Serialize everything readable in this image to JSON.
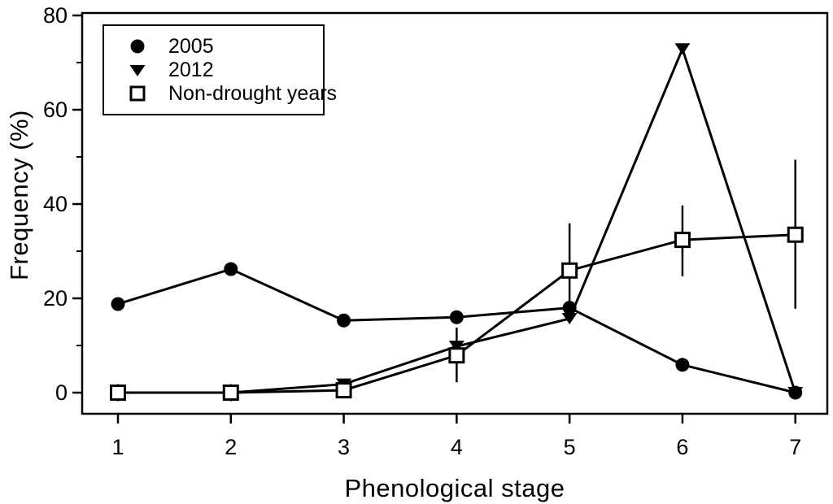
{
  "figure": {
    "background_color": "#ffffff",
    "foreground_color": "#000000"
  },
  "chart_data": {
    "type": "line",
    "title": "",
    "xlabel": "Phenological stage",
    "ylabel": "Frequency (%)",
    "x": [
      1,
      2,
      3,
      4,
      5,
      6,
      7
    ],
    "xticks": [
      1,
      2,
      3,
      4,
      5,
      6,
      7
    ],
    "yticks_major": [
      0,
      20,
      40,
      60,
      80
    ],
    "yticks_minor": [
      10,
      30,
      50,
      70
    ],
    "xlim": [
      0.683,
      7.283
    ],
    "ylim": [
      -4.48,
      80.52
    ],
    "grid": false,
    "legend_position": "top-left",
    "line_color": "#000000",
    "series": [
      {
        "name": "2005",
        "marker": "filled-circle",
        "values": [
          18.8,
          26.2,
          15.3,
          16.0,
          18.0,
          5.9,
          0
        ],
        "error_bars": null
      },
      {
        "name": "2012",
        "marker": "filled-triangle-down",
        "values": [
          0,
          0,
          1.8,
          9.8,
          15.7,
          72.9,
          0
        ],
        "error_bars": null
      },
      {
        "name": "Non-drought years",
        "marker": "open-square",
        "values": [
          0,
          0,
          0.5,
          7.9,
          25.9,
          32.4,
          33.5
        ],
        "error_bars": [
          {
            "lo": -1.8,
            "hi": 1.8
          },
          {
            "lo": -1.8,
            "hi": 1.8
          },
          null,
          {
            "lo": 2.2,
            "hi": 13.8
          },
          {
            "lo": 15.9,
            "hi": 35.9
          },
          {
            "lo": 24.7,
            "hi": 39.7
          },
          {
            "lo": 17.8,
            "hi": 49.4
          }
        ]
      }
    ]
  }
}
